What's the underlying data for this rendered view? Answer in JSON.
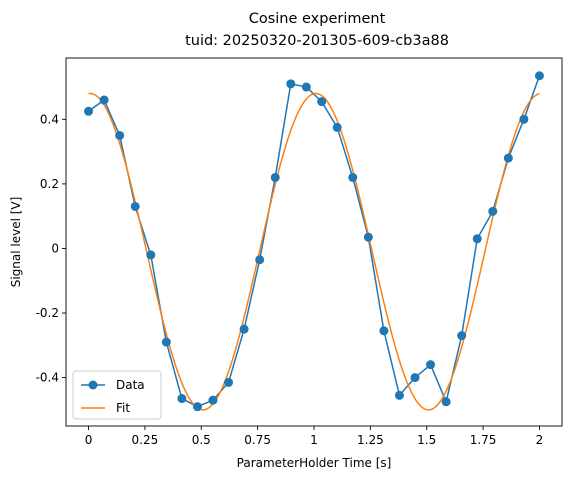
{
  "chart_data": {
    "type": "line",
    "title": "Cosine experiment",
    "subtitle": "tuid: 20250320-201305-609-cb3a88",
    "xlabel": "ParameterHolder Time [s]",
    "ylabel": "Signal level [V]",
    "xlim": [
      -0.1,
      2.1
    ],
    "ylim": [
      -0.55,
      0.59
    ],
    "xticks": [
      0,
      0.25,
      0.5,
      0.75,
      1,
      1.25,
      1.5,
      1.75,
      2
    ],
    "xtick_labels": [
      "0",
      "0.25",
      "0.5",
      "0.75",
      "1",
      "1.25",
      "1.5",
      "1.75",
      "2"
    ],
    "yticks": [
      -0.4,
      -0.2,
      0,
      0.2,
      0.4
    ],
    "ytick_labels": [
      "-0.4",
      "-0.2",
      "0",
      "0.2",
      "0.4"
    ],
    "grid": false,
    "legend": "lower-left",
    "series": [
      {
        "name": "Data",
        "style": "line-marker",
        "color": "#1f77b4",
        "x": [
          0.0,
          0.069,
          0.138,
          0.207,
          0.276,
          0.345,
          0.414,
          0.483,
          0.552,
          0.621,
          0.69,
          0.759,
          0.828,
          0.897,
          0.966,
          1.034,
          1.103,
          1.172,
          1.241,
          1.31,
          1.379,
          1.448,
          1.517,
          1.586,
          1.655,
          1.724,
          1.793,
          1.862,
          1.931,
          2.0
        ],
        "y": [
          0.425,
          0.46,
          0.35,
          0.13,
          -0.02,
          -0.29,
          -0.465,
          -0.49,
          -0.47,
          -0.415,
          -0.25,
          -0.035,
          0.22,
          0.51,
          0.5,
          0.455,
          0.375,
          0.22,
          0.035,
          -0.255,
          -0.455,
          -0.4,
          -0.36,
          -0.475,
          -0.27,
          0.03,
          0.115,
          0.28,
          0.4,
          0.535
        ]
      },
      {
        "name": "Fit",
        "style": "line",
        "color": "#ff7f0e",
        "model": "cosine",
        "amplitude": 0.49,
        "frequency": 1.0,
        "phase": -0.05,
        "offset": -0.01,
        "x_range": [
          0,
          2
        ]
      }
    ]
  }
}
